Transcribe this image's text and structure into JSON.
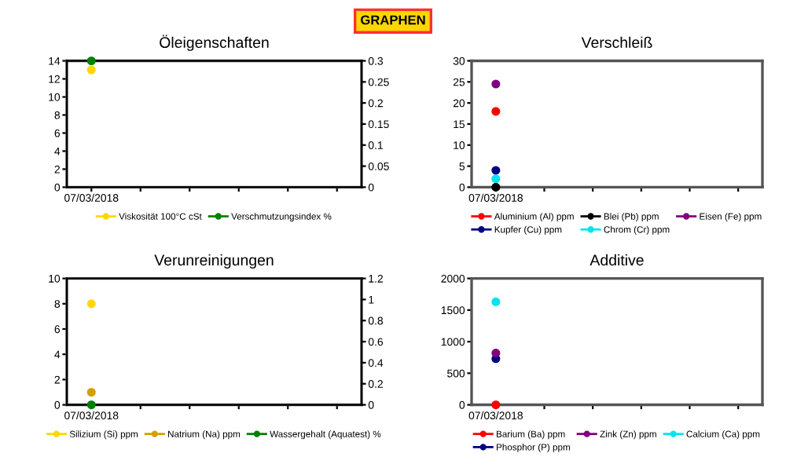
{
  "chart_data": [
    {
      "type": "line",
      "title": "Öleigenschaften",
      "annotations": [
        "GRAPHEN"
      ],
      "categories": [
        "07/03/2018",
        null,
        null,
        null,
        null,
        null
      ],
      "marker": "circle",
      "legend": "bottom",
      "grid": false,
      "ylim": [
        0,
        14
      ],
      "yticks": [
        0,
        2,
        4,
        6,
        8,
        10,
        12,
        14
      ],
      "y2lim": [
        0,
        0.3
      ],
      "y2ticks": [
        0,
        0.05,
        0.1,
        0.15,
        0.2,
        0.25,
        0.3
      ],
      "series": [
        {
          "name": "Viskosität 100°C cSt",
          "color": "#ffd700",
          "values": [
            13,
            null,
            null,
            null,
            null,
            null
          ]
        },
        {
          "name": "Verschmutzungsindex %",
          "color": "#008000",
          "axis": "y2",
          "values": [
            0.3,
            null,
            null,
            null,
            null,
            null
          ]
        }
      ]
    },
    {
      "type": "line",
      "title": "Verschleiß",
      "categories": [
        "07/03/2018",
        null,
        null,
        null,
        null,
        null
      ],
      "marker": "circle",
      "legend": "bottom",
      "grid": false,
      "ylim": [
        0,
        30
      ],
      "yticks": [
        0,
        5,
        10,
        15,
        20,
        25,
        30
      ],
      "series": [
        {
          "name": "Aluminium (Al) ppm",
          "color": "#ff0000",
          "values": [
            18,
            null,
            null,
            null,
            null,
            null
          ]
        },
        {
          "name": "Kupfer (Cu) ppm",
          "color": "#000080",
          "values": [
            4,
            null,
            null,
            null,
            null,
            null
          ]
        },
        {
          "name": "Blei (Pb) ppm",
          "color": "#000000",
          "values": [
            0,
            null,
            null,
            null,
            null,
            null
          ]
        },
        {
          "name": "Chrom (Cr) ppm",
          "color": "#00e5ee",
          "values": [
            2,
            null,
            null,
            null,
            null,
            null
          ]
        },
        {
          "name": "Eisen (Fe) ppm",
          "color": "#800080",
          "values": [
            24.5,
            null,
            null,
            null,
            null,
            null
          ]
        }
      ]
    },
    {
      "type": "line",
      "title": "Verunreinigungen",
      "categories": [
        "07/03/2018",
        null,
        null,
        null,
        null,
        null
      ],
      "marker": "circle",
      "legend": "bottom",
      "grid": false,
      "ylim": [
        0,
        10
      ],
      "yticks": [
        0,
        2,
        4,
        6,
        8,
        10
      ],
      "y2lim": [
        0,
        1.2
      ],
      "y2ticks": [
        0,
        0.2,
        0.4,
        0.6,
        0.8,
        1,
        1.2
      ],
      "series": [
        {
          "name": "Silizium (Si) ppm",
          "color": "#ffd700",
          "values": [
            8,
            null,
            null,
            null,
            null,
            null
          ]
        },
        {
          "name": "Natrium (Na) ppm",
          "color": "#d4a000",
          "values": [
            1,
            null,
            null,
            null,
            null,
            null
          ]
        },
        {
          "name": "Wassergehalt (Aquatest) %",
          "color": "#008000",
          "axis": "y2",
          "values": [
            0,
            null,
            null,
            null,
            null,
            null
          ]
        }
      ]
    },
    {
      "type": "line",
      "title": "Additive",
      "categories": [
        "07/03/2018",
        null,
        null,
        null,
        null,
        null
      ],
      "marker": "circle",
      "legend": "bottom",
      "grid": false,
      "ylim": [
        0,
        2000
      ],
      "yticks": [
        0,
        500,
        1000,
        1500,
        2000
      ],
      "series": [
        {
          "name": "Barium (Ba) ppm",
          "color": "#ff0000",
          "values": [
            0,
            null,
            null,
            null,
            null,
            null
          ]
        },
        {
          "name": "Phosphor (P) ppm",
          "color": "#000080",
          "values": [
            730,
            null,
            null,
            null,
            null,
            null
          ]
        },
        {
          "name": "Zink (Zn) ppm",
          "color": "#800080",
          "values": [
            820,
            null,
            null,
            null,
            null,
            null
          ]
        },
        {
          "name": "Calcium (Ca) ppm",
          "color": "#00e5ee",
          "values": [
            1630,
            null,
            null,
            null,
            null,
            null
          ]
        }
      ]
    }
  ]
}
